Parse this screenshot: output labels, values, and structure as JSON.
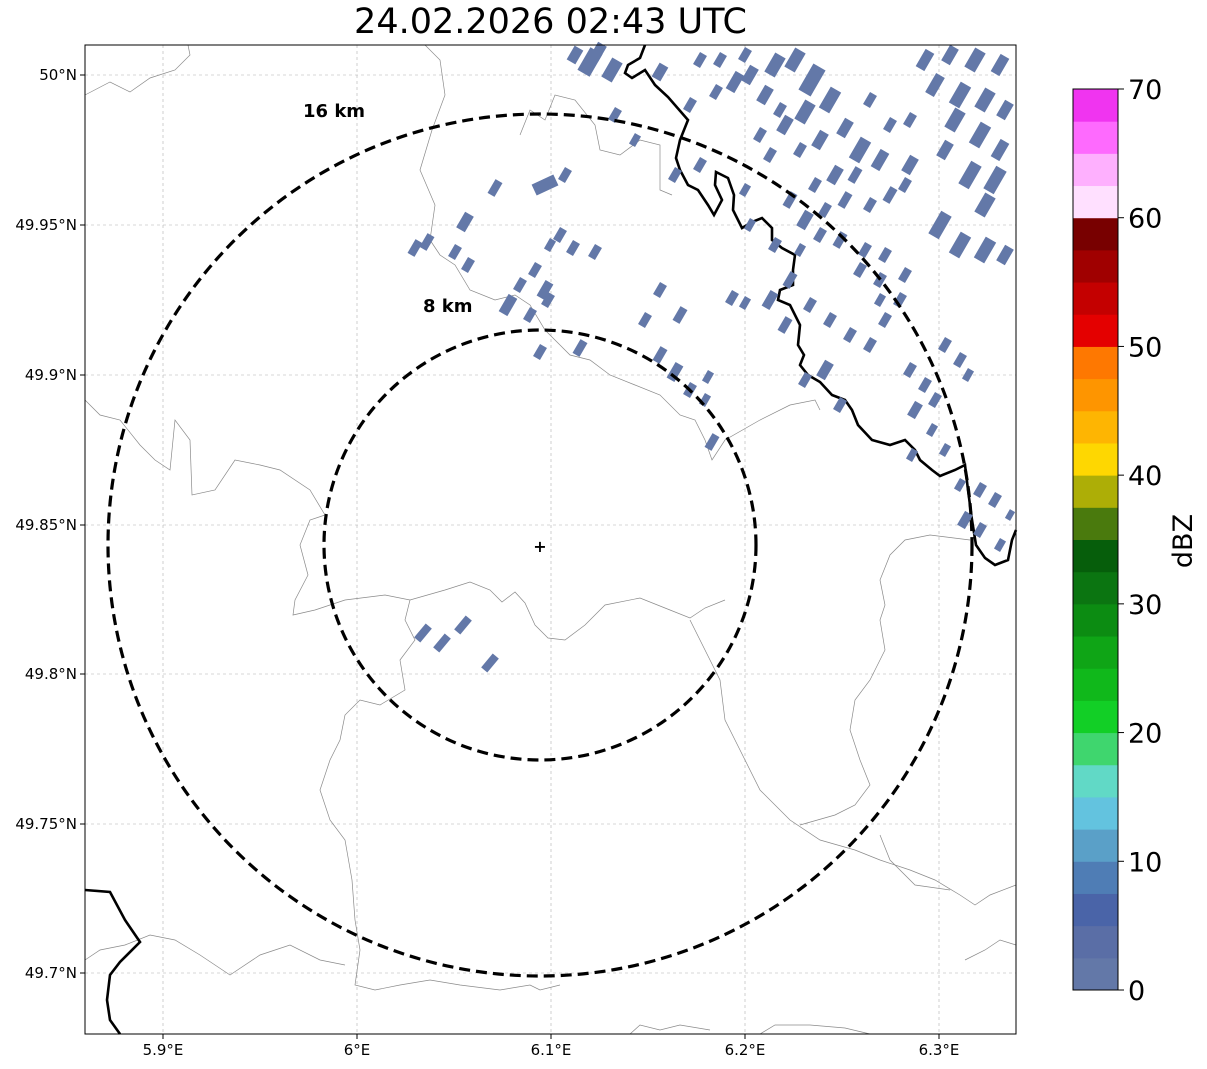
{
  "title": "24.02.2026 02:43 UTC",
  "map": {
    "lon_ticks": [
      "5.9°E",
      "6°E",
      "6.1°E",
      "6.2°E",
      "6.3°E"
    ],
    "lat_ticks": [
      "50°N",
      "49.95°N",
      "49.9°N",
      "49.85°N",
      "49.8°N",
      "49.75°N",
      "49.7°N"
    ],
    "radar_site": "+",
    "ring_labels": [
      "16 km",
      "8 km"
    ]
  },
  "colorbar": {
    "label": "dBZ",
    "tick_labels": [
      "0",
      "10",
      "20",
      "30",
      "40",
      "50",
      "60",
      "70"
    ],
    "colors": [
      "#6378a8",
      "#5a6ea6",
      "#4a64a8",
      "#4f7db5",
      "#5aa0c8",
      "#63c3df",
      "#61d9c6",
      "#3fd66e",
      "#12cf26",
      "#10b81b",
      "#0fa516",
      "#0c8c12",
      "#0b7511",
      "#065e0b",
      "#4a7a0d",
      "#adae06",
      "#fed701",
      "#feb502",
      "#fe9500",
      "#fe7801",
      "#e40000",
      "#c40000",
      "#a00000",
      "#780000",
      "#ffe0ff",
      "#feb0fe",
      "#fe6afe",
      "#f034f0"
    ]
  },
  "reflectivity_color": "#6378a8"
}
